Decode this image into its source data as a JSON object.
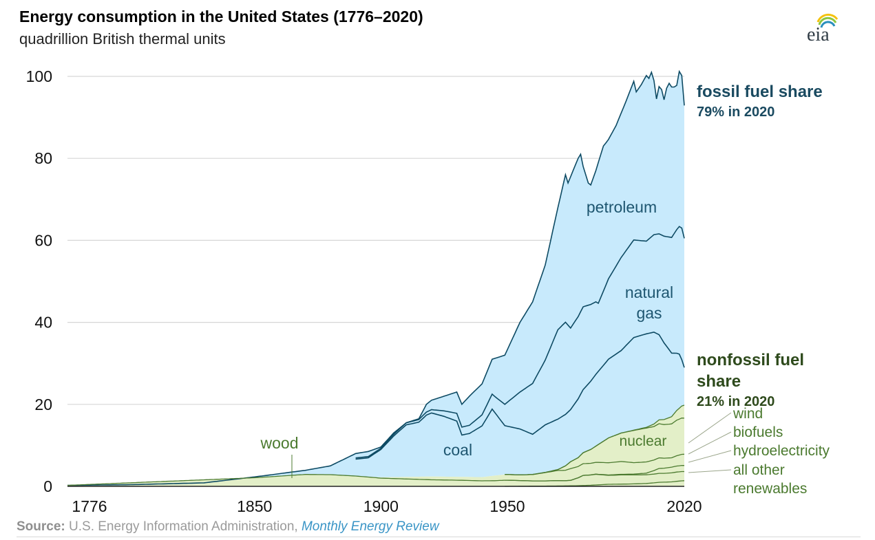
{
  "header": {
    "title": "Energy consumption in the United States (1776–2020)",
    "subtitle": "quadrillion British thermal units",
    "logo_text": "eia"
  },
  "footer": {
    "source_label": "Source:",
    "source_text": "U.S. Energy Information Administration,",
    "source_link": "Monthly Energy Review"
  },
  "colors": {
    "fossil_fill": "#c8eafc",
    "fossil_line": "#0d4a63",
    "nonfossil_fill": "#e3efc8",
    "nonfossil_line": "#4b7a2f",
    "fossil_text": "#1a4a60",
    "nonfossil_text": "#2e4a1c",
    "area_label_text": "#1e5670",
    "renewable_label_text": "#4b7a2f",
    "grid": "#d6d6d6"
  },
  "chart_data": {
    "type": "area",
    "stacked": true,
    "xlabel": "",
    "ylabel": "",
    "xlim": [
      1776,
      2020
    ],
    "ylim": [
      0,
      100
    ],
    "x_ticks": [
      "1776",
      "1850",
      "1900",
      "1950",
      "2020"
    ],
    "y_ticks": [
      "0",
      "20",
      "40",
      "60",
      "80",
      "100"
    ],
    "grid": "horizontal",
    "series": [
      {
        "name": "all other renewables",
        "points": [
          [
            1949,
            0
          ],
          [
            1960,
            0.05
          ],
          [
            1970,
            0.1
          ],
          [
            1980,
            0.2
          ],
          [
            1990,
            0.5
          ],
          [
            2000,
            0.6
          ],
          [
            2005,
            0.7
          ],
          [
            2010,
            1.0
          ],
          [
            2015,
            1.1
          ],
          [
            2020,
            1.3
          ]
        ]
      },
      {
        "name": "wood",
        "points": [
          [
            1776,
            0.25
          ],
          [
            1790,
            0.3
          ],
          [
            1800,
            0.4
          ],
          [
            1810,
            0.5
          ],
          [
            1820,
            0.6
          ],
          [
            1830,
            0.8
          ],
          [
            1840,
            1.2
          ],
          [
            1850,
            2.1
          ],
          [
            1860,
            2.6
          ],
          [
            1870,
            2.9
          ],
          [
            1880,
            2.85
          ],
          [
            1890,
            2.6
          ],
          [
            1900,
            2.0
          ],
          [
            1910,
            1.8
          ],
          [
            1920,
            1.6
          ],
          [
            1930,
            1.45
          ],
          [
            1940,
            1.35
          ],
          [
            1945,
            1.3
          ],
          [
            1949,
            1.5
          ],
          [
            1955,
            1.4
          ],
          [
            1960,
            1.3
          ],
          [
            1965,
            1.3
          ],
          [
            1970,
            1.4
          ],
          [
            1975,
            1.5
          ],
          [
            1980,
            2.5
          ],
          [
            1985,
            2.7
          ],
          [
            1990,
            2.2
          ],
          [
            1995,
            2.3
          ],
          [
            2000,
            2.2
          ],
          [
            2005,
            2.1
          ],
          [
            2010,
            2.2
          ],
          [
            2015,
            2.2
          ],
          [
            2020,
            2.1
          ]
        ]
      },
      {
        "name": "biofuels",
        "points": [
          [
            1949,
            0
          ],
          [
            1980,
            0
          ],
          [
            1990,
            0.1
          ],
          [
            2000,
            0.2
          ],
          [
            2005,
            0.4
          ],
          [
            2010,
            1.2
          ],
          [
            2015,
            1.4
          ],
          [
            2020,
            1.4
          ]
        ]
      },
      {
        "name": "hydroelectricity",
        "points": [
          [
            1890,
            0
          ],
          [
            1900,
            0.2
          ],
          [
            1910,
            0.5
          ],
          [
            1920,
            0.8
          ],
          [
            1930,
            0.8
          ],
          [
            1940,
            0.9
          ],
          [
            1949,
            1.4
          ],
          [
            1955,
            1.4
          ],
          [
            1960,
            1.6
          ],
          [
            1965,
            2.1
          ],
          [
            1970,
            2.6
          ],
          [
            1975,
            3.2
          ],
          [
            1980,
            2.9
          ],
          [
            1985,
            3.0
          ],
          [
            1990,
            3.0
          ],
          [
            1995,
            3.2
          ],
          [
            2000,
            2.8
          ],
          [
            2005,
            2.7
          ],
          [
            2010,
            2.6
          ],
          [
            2015,
            2.3
          ],
          [
            2020,
            2.6
          ]
        ]
      },
      {
        "name": "nuclear",
        "points": [
          [
            1957,
            0
          ],
          [
            1965,
            0.05
          ],
          [
            1970,
            0.24
          ],
          [
            1975,
            1.9
          ],
          [
            1980,
            2.7
          ],
          [
            1985,
            4.1
          ],
          [
            1990,
            6.1
          ],
          [
            1995,
            7.1
          ],
          [
            2000,
            7.9
          ],
          [
            2005,
            8.2
          ],
          [
            2010,
            8.4
          ],
          [
            2015,
            8.3
          ],
          [
            2020,
            8.3
          ]
        ]
      },
      {
        "name": "wind",
        "points": [
          [
            1995,
            0
          ],
          [
            2000,
            0.06
          ],
          [
            2005,
            0.18
          ],
          [
            2010,
            0.92
          ],
          [
            2015,
            1.78
          ],
          [
            2020,
            3.0
          ]
        ]
      },
      {
        "name": "coal",
        "points": [
          [
            1776,
            0
          ],
          [
            1820,
            0.01
          ],
          [
            1830,
            0.05
          ],
          [
            1840,
            0.1
          ],
          [
            1850,
            0.2
          ],
          [
            1860,
            0.5
          ],
          [
            1870,
            1.0
          ],
          [
            1880,
            2.0
          ],
          [
            1885,
            2.8
          ],
          [
            1890,
            4.1
          ],
          [
            1895,
            4.6
          ],
          [
            1900,
            6.8
          ],
          [
            1905,
            10.0
          ],
          [
            1910,
            12.7
          ],
          [
            1915,
            13.3
          ],
          [
            1918,
            15.0
          ],
          [
            1920,
            15.5
          ],
          [
            1925,
            14.7
          ],
          [
            1930,
            13.6
          ],
          [
            1932,
            10.2
          ],
          [
            1935,
            10.6
          ],
          [
            1940,
            12.5
          ],
          [
            1944,
            16.3
          ],
          [
            1949,
            11.9
          ],
          [
            1955,
            11.2
          ],
          [
            1960,
            9.8
          ],
          [
            1965,
            11.6
          ],
          [
            1970,
            12.3
          ],
          [
            1975,
            12.7
          ],
          [
            1980,
            15.4
          ],
          [
            1985,
            17.5
          ],
          [
            1990,
            19.2
          ],
          [
            1995,
            20.1
          ],
          [
            2000,
            22.6
          ],
          [
            2005,
            22.8
          ],
          [
            2008,
            22.4
          ],
          [
            2010,
            20.8
          ],
          [
            2015,
            15.5
          ],
          [
            2018,
            13.2
          ],
          [
            2019,
            11.3
          ],
          [
            2020,
            9.2
          ]
        ]
      },
      {
        "name": "natural gas",
        "points": [
          [
            1885,
            0
          ],
          [
            1890,
            0.3
          ],
          [
            1900,
            0.3
          ],
          [
            1910,
            0.5
          ],
          [
            1920,
            0.8
          ],
          [
            1930,
            1.9
          ],
          [
            1935,
            2.0
          ],
          [
            1940,
            2.7
          ],
          [
            1945,
            3.9
          ],
          [
            1949,
            5.2
          ],
          [
            1955,
            9.0
          ],
          [
            1960,
            12.4
          ],
          [
            1965,
            15.8
          ],
          [
            1970,
            21.8
          ],
          [
            1973,
            22.5
          ],
          [
            1975,
            19.9
          ],
          [
            1980,
            20.2
          ],
          [
            1985,
            17.7
          ],
          [
            1986,
            16.6
          ],
          [
            1990,
            19.6
          ],
          [
            1995,
            22.7
          ],
          [
            2000,
            23.8
          ],
          [
            2005,
            22.6
          ],
          [
            2010,
            24.6
          ],
          [
            2015,
            28.2
          ],
          [
            2019,
            32.1
          ],
          [
            2020,
            31.5
          ]
        ]
      },
      {
        "name": "petroleum",
        "points": [
          [
            1885,
            0
          ],
          [
            1890,
            0.2
          ],
          [
            1900,
            0.2
          ],
          [
            1905,
            0.6
          ],
          [
            1910,
            1.0
          ],
          [
            1915,
            1.4
          ],
          [
            1920,
            2.7
          ],
          [
            1925,
            4.3
          ],
          [
            1930,
            5.9
          ],
          [
            1932,
            4.9
          ],
          [
            1935,
            5.7
          ],
          [
            1940,
            7.8
          ],
          [
            1945,
            10.1
          ],
          [
            1949,
            11.9
          ],
          [
            1955,
            17.3
          ],
          [
            1960,
            19.9
          ],
          [
            1965,
            23.2
          ],
          [
            1970,
            29.5
          ],
          [
            1973,
            34.8
          ],
          [
            1975,
            32.7
          ],
          [
            1978,
            37.9
          ],
          [
            1980,
            34.2
          ],
          [
            1983,
            30.1
          ],
          [
            1985,
            30.9
          ],
          [
            1990,
            33.5
          ],
          [
            1995,
            34.4
          ],
          [
            2000,
            38.3
          ],
          [
            2005,
            40.3
          ],
          [
            2008,
            37.1
          ],
          [
            2010,
            35.9
          ],
          [
            2015,
            35.4
          ],
          [
            2019,
            36.7
          ],
          [
            2020,
            32.2
          ]
        ]
      }
    ],
    "totals": {
      "fossil": [
        [
          1776,
          0.25
        ],
        [
          1800,
          0.4
        ],
        [
          1830,
          0.85
        ],
        [
          1850,
          2.3
        ],
        [
          1860,
          3.1
        ],
        [
          1870,
          3.9
        ],
        [
          1880,
          5.0
        ],
        [
          1890,
          8.0
        ],
        [
          1895,
          8.5
        ],
        [
          1900,
          9.6
        ],
        [
          1905,
          13.0
        ],
        [
          1910,
          15.5
        ],
        [
          1915,
          16.5
        ],
        [
          1918,
          20.0
        ],
        [
          1920,
          21.0
        ],
        [
          1925,
          22.0
        ],
        [
          1930,
          23.0
        ],
        [
          1932,
          20.0
        ],
        [
          1935,
          22.0
        ],
        [
          1940,
          25.0
        ],
        [
          1944,
          31.0
        ],
        [
          1949,
          32.0
        ],
        [
          1955,
          40.0
        ],
        [
          1958,
          43.0
        ],
        [
          1960,
          45.0
        ],
        [
          1965,
          54.0
        ],
        [
          1970,
          68.0
        ],
        [
          1973,
          76.0
        ],
        [
          1974,
          74.0
        ],
        [
          1976,
          77.0
        ],
        [
          1978,
          80.0
        ],
        [
          1979,
          81.0
        ],
        [
          1980,
          78.0
        ],
        [
          1982,
          74.0
        ],
        [
          1983,
          73.5
        ],
        [
          1985,
          77.0
        ],
        [
          1988,
          83.0
        ],
        [
          1990,
          84.6
        ],
        [
          1993,
          88.0
        ],
        [
          1995,
          91.0
        ],
        [
          1997,
          94.0
        ],
        [
          2000,
          98.8
        ],
        [
          2001,
          96.2
        ],
        [
          2003,
          98.0
        ],
        [
          2005,
          100.2
        ],
        [
          2006,
          99.5
        ],
        [
          2007,
          101.0
        ],
        [
          2008,
          99.0
        ],
        [
          2009,
          94.5
        ],
        [
          2010,
          97.5
        ],
        [
          2011,
          96.8
        ],
        [
          2012,
          94.3
        ],
        [
          2013,
          97.1
        ],
        [
          2014,
          98.3
        ],
        [
          2015,
          97.4
        ],
        [
          2016,
          97.4
        ],
        [
          2017,
          97.8
        ],
        [
          2018,
          101.2
        ],
        [
          2019,
          100.2
        ],
        [
          2020,
          92.9
        ]
      ],
      "nonfossil": [
        [
          1776,
          0.25
        ],
        [
          1850,
          2.1
        ],
        [
          1870,
          2.9
        ],
        [
          1880,
          2.85
        ],
        [
          1900,
          2.2
        ],
        [
          1920,
          2.4
        ],
        [
          1940,
          2.25
        ],
        [
          1949,
          2.9
        ],
        [
          1955,
          2.8
        ],
        [
          1960,
          2.9
        ],
        [
          1965,
          3.4
        ],
        [
          1970,
          4.1
        ],
        [
          1973,
          5.0
        ],
        [
          1975,
          6.0
        ],
        [
          1978,
          7.0
        ],
        [
          1980,
          8.2
        ],
        [
          1983,
          9.0
        ],
        [
          1985,
          9.8
        ],
        [
          1990,
          11.8
        ],
        [
          1995,
          13.0
        ],
        [
          2000,
          13.7
        ],
        [
          2005,
          14.4
        ],
        [
          2008,
          15.2
        ],
        [
          2010,
          16.2
        ],
        [
          2012,
          16.3
        ],
        [
          2015,
          17.0
        ],
        [
          2017,
          18.5
        ],
        [
          2019,
          19.6
        ],
        [
          2020,
          19.8
        ]
      ]
    },
    "annotations": {
      "fossil_share_title": "fossil fuel share",
      "fossil_share_value": "79% in 2020",
      "nonfossil_share_title_1": "nonfossil fuel",
      "nonfossil_share_title_2": "share",
      "nonfossil_share_value": "21% in 2020",
      "area_labels": [
        "petroleum",
        "natural",
        "gas",
        "coal",
        "nuclear",
        "wood"
      ],
      "renewable_labels": [
        "wind",
        "biofuels",
        "hydroelectricity",
        "all other",
        "renewables"
      ]
    }
  }
}
